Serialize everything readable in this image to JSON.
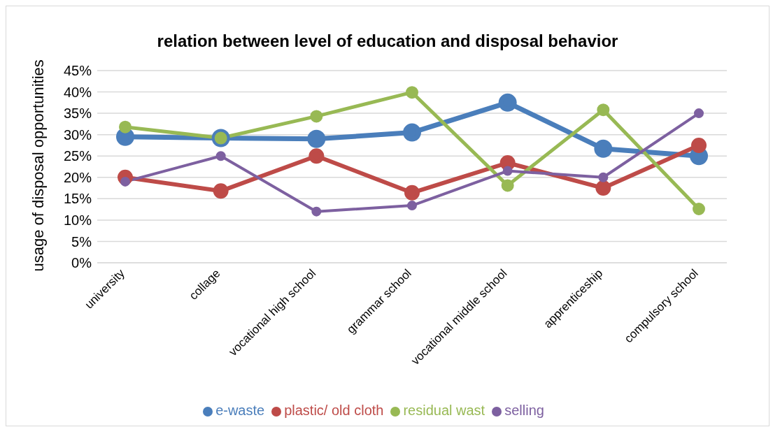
{
  "chart_data": {
    "type": "line",
    "title": "relation between level of education and disposal behavior",
    "ylabel": "usage of disposal opportunities",
    "categories": [
      "university",
      "collage",
      "vocational high school",
      "grammar school",
      "vocational middle school",
      "apprenticeship",
      "compulsory school"
    ],
    "series": [
      {
        "name": "e-waste",
        "color": "#4a7ebb",
        "values": [
          29.5,
          29.2,
          29,
          30.5,
          37.5,
          26.7,
          25
        ]
      },
      {
        "name": "plastic/ old cloth",
        "color": "#be4b48",
        "values": [
          20,
          16.8,
          25,
          16.4,
          23.4,
          17.5,
          27.5
        ]
      },
      {
        "name": "residual wast",
        "color": "#98b954",
        "values": [
          31.8,
          29.2,
          34.3,
          39.9,
          18.1,
          35.8,
          12.6
        ]
      },
      {
        "name": "selling",
        "color": "#7d60a0",
        "values": [
          19,
          25,
          12,
          13.4,
          21.5,
          20,
          35
        ]
      }
    ],
    "ylim": [
      0,
      45
    ],
    "yticks": [
      {
        "value": 0,
        "label": "0%"
      },
      {
        "value": 5,
        "label": "5%"
      },
      {
        "value": 10,
        "label": "10%"
      },
      {
        "value": 15,
        "label": "15%"
      },
      {
        "value": 20,
        "label": "20%"
      },
      {
        "value": 25,
        "label": "25%"
      },
      {
        "value": 30,
        "label": "30%"
      },
      {
        "value": 35,
        "label": "35%"
      },
      {
        "value": 40,
        "label": "40%"
      },
      {
        "value": 45,
        "label": "45%"
      }
    ],
    "grid": "y",
    "legend": "bottom",
    "marker": "circle",
    "line_style": "solid"
  }
}
